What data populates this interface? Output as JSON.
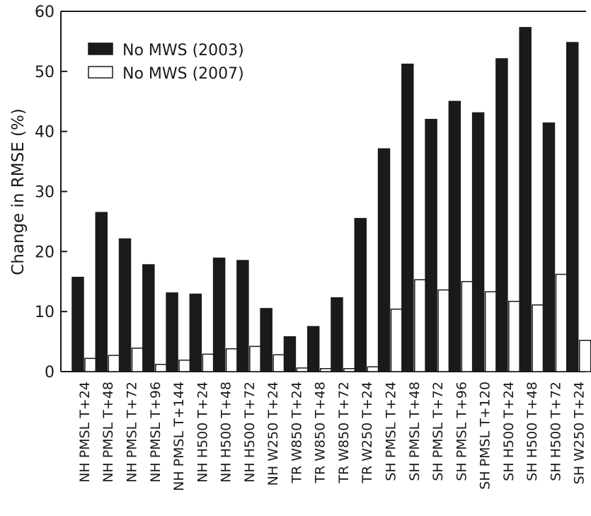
{
  "chart_data": {
    "type": "bar",
    "ylabel": "Change in RMSE (%)",
    "xlabel": "",
    "ylim": [
      0,
      60
    ],
    "yticks": [
      0,
      10,
      20,
      30,
      40,
      50,
      60
    ],
    "grid": false,
    "legend_position": "top-left",
    "categories": [
      "NH PMSL T+24",
      "NH PMSL T+48",
      "NH PMSL T+72",
      "NH PMSL T+96",
      "NH PMSL T+144",
      "NH H500 T+24",
      "NH H500 T+48",
      "NH H500 T+72",
      "NH W250 T+24",
      "TR W850 T+24",
      "TR W850 T+48",
      "TR W850 T+72",
      "TR W250 T+24",
      "SH PMSL T+24",
      "SH PMSL T+48",
      "SH PMSL T+72",
      "SH PMSL T+96",
      "SH PMSL T+120",
      "SH H500 T+24",
      "SH H500 T+48",
      "SH H500 T+72",
      "SH W250 T+24"
    ],
    "series": [
      {
        "name": "No MWS (2003)",
        "color": "#1a1a1a",
        "values": [
          15.7,
          26.5,
          22.1,
          17.8,
          13.1,
          12.9,
          18.9,
          18.5,
          10.5,
          5.8,
          7.5,
          12.3,
          25.5,
          37.1,
          51.2,
          42.0,
          45.0,
          43.1,
          52.1,
          57.3,
          41.4,
          54.8
        ]
      },
      {
        "name": "No MWS (2007)",
        "color": "#ffffff",
        "values": [
          2.2,
          2.7,
          3.9,
          1.2,
          1.9,
          2.9,
          3.8,
          4.2,
          2.8,
          0.6,
          0.5,
          0.5,
          0.8,
          10.4,
          15.3,
          13.6,
          15.0,
          13.3,
          11.7,
          11.1,
          16.2,
          5.2
        ]
      }
    ]
  }
}
